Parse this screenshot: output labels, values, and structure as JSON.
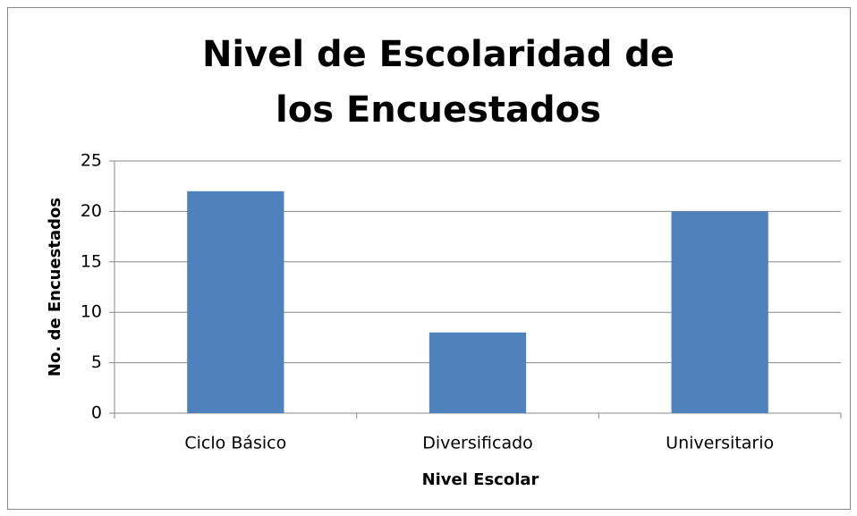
{
  "chart_data": {
    "type": "bar",
    "title": "Nivel de Escolaridad de los Encuestados",
    "x_label": "Nivel Escolar",
    "y_label": "No. de Encuestados",
    "categories": [
      "Ciclo Básico",
      "Diversificado",
      "Universitario"
    ],
    "values": [
      22,
      8,
      20
    ],
    "color": "#4f81bd",
    "ylim": [
      0,
      25
    ],
    "yticks": [
      0,
      5,
      10,
      15,
      20,
      25
    ],
    "grid": true
  }
}
